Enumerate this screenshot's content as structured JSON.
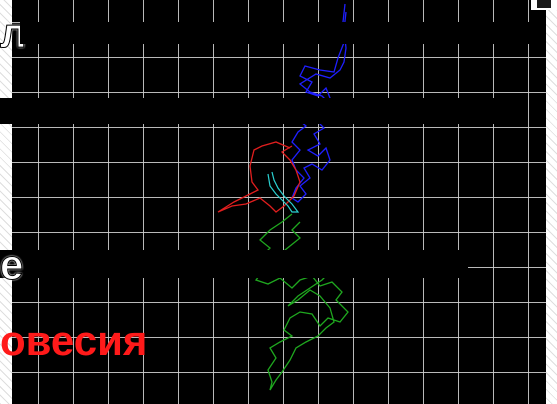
{
  "slide": {
    "line1_fragment": "л",
    "line2_fragment": "",
    "line3_fragment": "е",
    "line4_fragment": "овесия"
  },
  "trace": {
    "colors": {
      "upper_segment": "#1f1fff",
      "middle_segment": "#e01e1e",
      "lower_segment": "#1fa81f",
      "center_segment": "#2ad0d0",
      "grid_lines": "#cdcdcd",
      "background": "#000000"
    }
  }
}
